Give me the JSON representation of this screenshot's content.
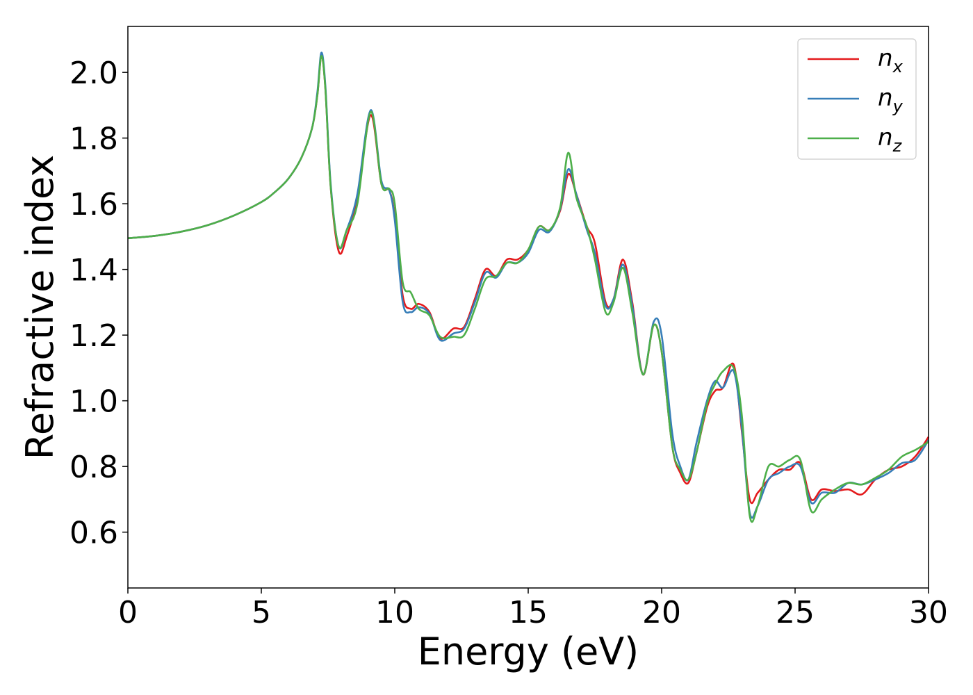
{
  "chart_data": {
    "type": "line",
    "title": "",
    "xlabel": "Energy (eV)",
    "ylabel": "Refractive index",
    "xlim": [
      0,
      30
    ],
    "ylim": [
      0.43,
      2.14
    ],
    "xticks": [
      0,
      5,
      10,
      15,
      20,
      25,
      30
    ],
    "yticks": [
      0.6,
      0.8,
      1.0,
      1.2,
      1.4,
      1.6,
      1.8,
      2.0
    ],
    "ytick_labels": [
      "0.6",
      "0.8",
      "1.0",
      "1.2",
      "1.4",
      "1.6",
      "1.8",
      "2.0"
    ],
    "grid": false,
    "legend_position": "top-right",
    "series": [
      {
        "name": "n",
        "subscript": "x",
        "color": "#e41a1c",
        "x": [
          0,
          1,
          2,
          3,
          4,
          5,
          5.5,
          6,
          6.5,
          6.9,
          7.1,
          7.25,
          7.4,
          7.6,
          7.9,
          8.2,
          8.6,
          9.1,
          9.5,
          9.8,
          10.0,
          10.3,
          10.6,
          10.9,
          11.3,
          11.7,
          12.2,
          12.6,
          13.0,
          13.4,
          13.8,
          14.2,
          14.6,
          15.0,
          15.4,
          15.8,
          16.2,
          16.5,
          16.8,
          17.2,
          17.5,
          17.9,
          18.2,
          18.55,
          18.9,
          19.3,
          19.7,
          20.0,
          20.4,
          20.7,
          21.0,
          21.3,
          21.7,
          22.0,
          22.3,
          22.7,
          23.0,
          23.3,
          23.6,
          24.0,
          24.4,
          24.8,
          25.2,
          25.6,
          26.0,
          26.5,
          27.0,
          27.5,
          28.0,
          28.5,
          29.0,
          29.5,
          30.0
        ],
        "y": [
          1.495,
          1.502,
          1.515,
          1.535,
          1.565,
          1.605,
          1.635,
          1.675,
          1.74,
          1.83,
          1.93,
          2.05,
          1.95,
          1.65,
          1.455,
          1.5,
          1.62,
          1.87,
          1.66,
          1.64,
          1.56,
          1.32,
          1.28,
          1.295,
          1.27,
          1.19,
          1.22,
          1.225,
          1.31,
          1.4,
          1.38,
          1.43,
          1.43,
          1.46,
          1.53,
          1.52,
          1.58,
          1.69,
          1.63,
          1.53,
          1.48,
          1.3,
          1.31,
          1.43,
          1.3,
          1.08,
          1.23,
          1.15,
          0.86,
          0.78,
          0.75,
          0.84,
          0.98,
          1.03,
          1.04,
          1.11,
          0.91,
          0.7,
          0.72,
          0.76,
          0.79,
          0.79,
          0.81,
          0.7,
          0.73,
          0.725,
          0.73,
          0.715,
          0.76,
          0.79,
          0.8,
          0.83,
          0.89
        ]
      },
      {
        "name": "n",
        "subscript": "y",
        "color": "#377eb8",
        "x": [
          0,
          1,
          2,
          3,
          4,
          5,
          5.5,
          6,
          6.5,
          6.9,
          7.1,
          7.25,
          7.4,
          7.6,
          7.9,
          8.2,
          8.6,
          9.1,
          9.5,
          9.8,
          10.0,
          10.3,
          10.6,
          10.9,
          11.3,
          11.7,
          12.2,
          12.6,
          13.0,
          13.4,
          13.8,
          14.2,
          14.6,
          15.0,
          15.4,
          15.8,
          16.2,
          16.5,
          16.8,
          17.2,
          17.5,
          17.9,
          18.2,
          18.55,
          18.9,
          19.3,
          19.7,
          20.0,
          20.4,
          20.7,
          21.0,
          21.3,
          21.7,
          22.0,
          22.3,
          22.7,
          23.0,
          23.3,
          23.6,
          24.0,
          24.4,
          24.8,
          25.2,
          25.6,
          26.0,
          26.5,
          27.0,
          27.5,
          28.0,
          28.5,
          29.0,
          29.5,
          30.0
        ],
        "y": [
          1.495,
          1.502,
          1.515,
          1.535,
          1.565,
          1.605,
          1.635,
          1.675,
          1.74,
          1.83,
          1.94,
          2.06,
          1.96,
          1.66,
          1.47,
          1.52,
          1.63,
          1.885,
          1.67,
          1.64,
          1.55,
          1.3,
          1.27,
          1.285,
          1.265,
          1.185,
          1.205,
          1.22,
          1.3,
          1.39,
          1.375,
          1.42,
          1.42,
          1.45,
          1.52,
          1.515,
          1.585,
          1.705,
          1.63,
          1.52,
          1.45,
          1.29,
          1.31,
          1.415,
          1.29,
          1.08,
          1.24,
          1.2,
          0.9,
          0.8,
          0.76,
          0.87,
          1.0,
          1.06,
          1.04,
          1.09,
          0.92,
          0.66,
          0.68,
          0.76,
          0.78,
          0.8,
          0.8,
          0.69,
          0.72,
          0.72,
          0.75,
          0.745,
          0.76,
          0.78,
          0.81,
          0.82,
          0.88
        ]
      },
      {
        "name": "n",
        "subscript": "z",
        "color": "#4daf4a",
        "x": [
          0,
          1,
          2,
          3,
          4,
          5,
          5.5,
          6,
          6.5,
          6.9,
          7.1,
          7.25,
          7.4,
          7.6,
          7.9,
          8.2,
          8.6,
          9.1,
          9.5,
          9.8,
          10.0,
          10.3,
          10.6,
          10.9,
          11.3,
          11.7,
          12.2,
          12.6,
          13.0,
          13.4,
          13.8,
          14.2,
          14.6,
          15.0,
          15.4,
          15.8,
          16.2,
          16.5,
          16.8,
          17.2,
          17.5,
          17.9,
          18.2,
          18.55,
          18.9,
          19.3,
          19.7,
          20.0,
          20.4,
          20.7,
          21.0,
          21.3,
          21.7,
          22.0,
          22.3,
          22.7,
          23.0,
          23.3,
          23.6,
          24.0,
          24.4,
          24.8,
          25.2,
          25.6,
          26.0,
          26.5,
          27.0,
          27.5,
          28.0,
          28.5,
          29.0,
          29.5,
          30.0
        ],
        "y": [
          1.495,
          1.502,
          1.515,
          1.535,
          1.565,
          1.605,
          1.635,
          1.675,
          1.74,
          1.83,
          1.93,
          2.05,
          1.95,
          1.65,
          1.47,
          1.52,
          1.6,
          1.88,
          1.66,
          1.645,
          1.6,
          1.36,
          1.33,
          1.28,
          1.26,
          1.195,
          1.195,
          1.2,
          1.28,
          1.37,
          1.38,
          1.42,
          1.42,
          1.46,
          1.53,
          1.52,
          1.59,
          1.755,
          1.62,
          1.53,
          1.43,
          1.27,
          1.3,
          1.405,
          1.27,
          1.08,
          1.23,
          1.15,
          0.86,
          0.79,
          0.76,
          0.84,
          0.99,
          1.05,
          1.09,
          1.1,
          0.96,
          0.65,
          0.68,
          0.8,
          0.8,
          0.82,
          0.82,
          0.665,
          0.7,
          0.73,
          0.75,
          0.745,
          0.765,
          0.79,
          0.83,
          0.85,
          0.875
        ]
      }
    ]
  }
}
